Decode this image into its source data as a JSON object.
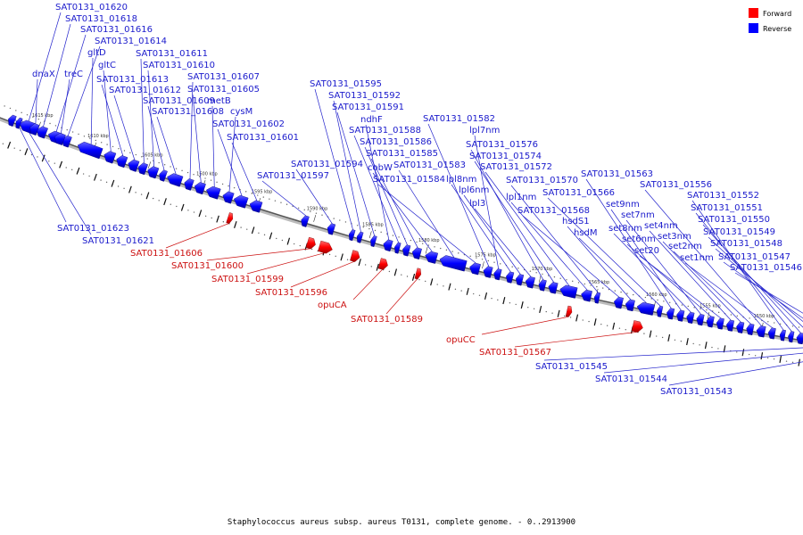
{
  "caption": "Staphylococcus aureus subsp. aureus T0131, complete genome. - 0..2913900",
  "legend": {
    "forward": {
      "label": "Forward",
      "color": "#ff0000"
    },
    "reverse": {
      "label": "Reverse",
      "color": "#0000ff"
    }
  },
  "kbp_ticks": [
    {
      "label": "1615 kbp",
      "t": 0.048
    },
    {
      "label": "1610 kbp",
      "t": 0.12
    },
    {
      "label": "1605 kbp",
      "t": 0.19
    },
    {
      "label": "1600 kbp",
      "t": 0.26
    },
    {
      "label": "1595 kbp",
      "t": 0.33
    },
    {
      "label": "1590 kbp",
      "t": 0.4
    },
    {
      "label": "1585 kbp",
      "t": 0.47
    },
    {
      "label": "1580 kbp",
      "t": 0.54
    },
    {
      "label": "1575 kbp",
      "t": 0.61
    },
    {
      "label": "1570 kbp",
      "t": 0.68
    },
    {
      "label": "1565 kbp",
      "t": 0.75
    },
    {
      "label": "1560 kbp",
      "t": 0.82
    },
    {
      "label": "1555 kbp",
      "t": 0.885
    },
    {
      "label": "1550 kbp",
      "t": 0.95
    },
    {
      "label": "1545 kbp",
      "t": 1.02
    }
  ],
  "genes_reverse": [
    {
      "label": "SAT0131_01620",
      "t": 0.025,
      "len": 0.018
    },
    {
      "label": "SAT0131_01618",
      "t": 0.047,
      "len": 0.012
    },
    {
      "label": "SAT0131_01616",
      "t": 0.062,
      "len": 0.016
    },
    {
      "label": "SAT0131_01614",
      "t": 0.08,
      "len": 0.01
    },
    {
      "label": "dnaX",
      "t": 0.038,
      "len": 0.01
    },
    {
      "label": "treC",
      "t": 0.07,
      "len": 0.012
    },
    {
      "label": "gltD",
      "t": 0.1,
      "len": 0.03
    },
    {
      "label": "gltC",
      "t": 0.134,
      "len": 0.013
    },
    {
      "label": "SAT0131_01613",
      "t": 0.15,
      "len": 0.012
    },
    {
      "label": "SAT0131_01612",
      "t": 0.165,
      "len": 0.012
    },
    {
      "label": "SAT0131_01611",
      "t": 0.178,
      "len": 0.01
    },
    {
      "label": "SAT0131_01610",
      "t": 0.19,
      "len": 0.012
    },
    {
      "label": "SAT0131_01609",
      "t": 0.205,
      "len": 0.008
    },
    {
      "label": "SAT0131_01608",
      "t": 0.215,
      "len": 0.018
    },
    {
      "label": "SAT0131_01607",
      "t": 0.237,
      "len": 0.01
    },
    {
      "label": "SAT0131_01605",
      "t": 0.25,
      "len": 0.012
    },
    {
      "label": "metB",
      "t": 0.265,
      "len": 0.016
    },
    {
      "label": "cysM",
      "t": 0.286,
      "len": 0.012
    },
    {
      "label": "SAT0131_01602",
      "t": 0.3,
      "len": 0.016
    },
    {
      "label": "SAT0131_01601",
      "t": 0.32,
      "len": 0.014
    },
    {
      "label": "SAT0131_01597",
      "t": 0.385,
      "len": 0.008
    },
    {
      "label": "SAT0131_01594",
      "t": 0.418,
      "len": 0.008
    },
    {
      "label": "SAT0131_01595",
      "t": 0.445,
      "len": 0.006
    },
    {
      "label": "SAT0131_01592",
      "t": 0.455,
      "len": 0.006
    },
    {
      "label": "SAT0131_01591",
      "t": 0.472,
      "len": 0.006
    },
    {
      "label": "ndhF",
      "t": 0.488,
      "len": 0.01
    },
    {
      "label": "SAT0131_01588",
      "t": 0.502,
      "len": 0.006
    },
    {
      "label": "SAT0131_01586",
      "t": 0.512,
      "len": 0.008
    },
    {
      "label": "SAT0131_01585",
      "t": 0.524,
      "len": 0.01
    },
    {
      "label": "cobW",
      "t": 0.54,
      "len": 0.014
    },
    {
      "label": "SAT0131_01583",
      "t": 0.558,
      "len": 0.032
    },
    {
      "label": "SAT0131_01584",
      "t": 0.595,
      "len": 0.012
    },
    {
      "label": "SAT0131_01582",
      "t": 0.612,
      "len": 0.01
    },
    {
      "label": "lpl7nm",
      "t": 0.625,
      "len": 0.008
    },
    {
      "label": "lpl8nm",
      "t": 0.64,
      "len": 0.008
    },
    {
      "label": "lpl6nm",
      "t": 0.652,
      "len": 0.008
    },
    {
      "label": "lpl3",
      "t": 0.664,
      "len": 0.01
    },
    {
      "label": "SAT0131_01576",
      "t": 0.68,
      "len": 0.008
    },
    {
      "label": "SAT0131_01574",
      "t": 0.692,
      "len": 0.01
    },
    {
      "label": "SAT0131_01572",
      "t": 0.706,
      "len": 0.02
    },
    {
      "label": "lpl1nm",
      "t": 0.732,
      "len": 0.012
    },
    {
      "label": "SAT0131_01570",
      "t": 0.748,
      "len": 0.006
    },
    {
      "label": "SAT0131_01568",
      "t": 0.772,
      "len": 0.01
    },
    {
      "label": "hsdS1",
      "t": 0.786,
      "len": 0.01
    },
    {
      "label": "hsdM",
      "t": 0.8,
      "len": 0.02
    },
    {
      "label": "SAT0131_01566",
      "t": 0.824,
      "len": 0.006
    },
    {
      "label": "SAT0131_01563",
      "t": 0.836,
      "len": 0.008
    },
    {
      "label": "set9nm",
      "t": 0.848,
      "len": 0.008
    },
    {
      "label": "set8nm",
      "t": 0.86,
      "len": 0.008
    },
    {
      "label": "set7nm",
      "t": 0.872,
      "len": 0.008
    },
    {
      "label": "set6nm",
      "t": 0.884,
      "len": 0.008
    },
    {
      "label": "set20",
      "t": 0.896,
      "len": 0.008
    },
    {
      "label": "set4nm",
      "t": 0.908,
      "len": 0.008
    },
    {
      "label": "set3nm",
      "t": 0.92,
      "len": 0.008
    },
    {
      "label": "set2nm",
      "t": 0.932,
      "len": 0.008
    },
    {
      "label": "SAT0131_01556",
      "t": 0.944,
      "len": 0.01
    },
    {
      "label": "set1nm",
      "t": 0.958,
      "len": 0.008
    },
    {
      "label": "SAT0131_01552",
      "t": 0.972,
      "len": 0.006
    },
    {
      "label": "SAT0131_01551",
      "t": 0.982,
      "len": 0.006
    },
    {
      "label": "SAT0131_01550",
      "t": 0.992,
      "len": 0.008
    },
    {
      "label": "SAT0131_01549",
      "t": 1.004,
      "len": 0.008
    },
    {
      "label": "SAT0131_01548",
      "t": 1.016,
      "len": 0.008
    },
    {
      "label": "SAT0131_01547",
      "t": 1.028,
      "len": 0.008
    },
    {
      "label": "SAT0131_01546",
      "t": 1.04,
      "len": 0.03
    },
    {
      "label": "SAT0131_01623",
      "t": 0.01,
      "len": 0.008
    },
    {
      "label": "SAT0131_01621",
      "t": 0.02,
      "len": 0.006
    },
    {
      "label": "SAT0131_01545",
      "t": 1.075,
      "len": 0.006
    },
    {
      "label": "SAT0131_01544",
      "t": 1.085,
      "len": 0.006
    },
    {
      "label": "SAT0131_01543",
      "t": 1.095,
      "len": 0.006
    }
  ],
  "genes_forward": [
    {
      "label": "SAT0131_01606",
      "t": 0.3,
      "len": 0.006
    },
    {
      "label": "SAT0131_01600",
      "t": 0.4,
      "len": 0.01
    },
    {
      "label": "SAT0131_01599",
      "t": 0.415,
      "len": 0.016
    },
    {
      "label": "SAT0131_01596",
      "t": 0.455,
      "len": 0.01
    },
    {
      "label": "opuCA",
      "t": 0.49,
      "len": 0.01
    },
    {
      "label": "SAT0131_01589",
      "t": 0.535,
      "len": 0.006
    },
    {
      "label": "opuCC",
      "t": 0.72,
      "len": 0.006
    },
    {
      "label": "SAT0131_01567",
      "t": 0.8,
      "len": 0.012
    }
  ],
  "labels_reverse": [
    {
      "text": "SAT0131_01620",
      "gene": 0
    },
    {
      "text": "SAT0131_01618",
      "gene": 1
    },
    {
      "text": "SAT0131_01616",
      "gene": 2
    },
    {
      "text": "SAT0131_01614",
      "gene": 3
    },
    {
      "text": "dnaX",
      "gene": 4
    },
    {
      "text": "treC",
      "gene": 5
    },
    {
      "text": "gltD",
      "gene": 6
    },
    {
      "text": "gltC",
      "gene": 7
    },
    {
      "text": "SAT0131_01613",
      "gene": 8
    },
    {
      "text": "SAT0131_01612",
      "gene": 9
    },
    {
      "text": "SAT0131_01611",
      "gene": 10
    },
    {
      "text": "SAT0131_01610",
      "gene": 11
    },
    {
      "text": "SAT0131_01609",
      "gene": 12
    },
    {
      "text": "SAT0131_01608",
      "gene": 13
    },
    {
      "text": "SAT0131_01607",
      "gene": 14
    },
    {
      "text": "SAT0131_01605",
      "gene": 15
    },
    {
      "text": "metB",
      "gene": 16
    },
    {
      "text": "cysM",
      "gene": 17
    },
    {
      "text": "SAT0131_01602",
      "gene": 18
    },
    {
      "text": "SAT0131_01601",
      "gene": 19
    },
    {
      "text": "SAT0131_01597",
      "gene": 20
    },
    {
      "text": "SAT0131_01594",
      "gene": 21
    },
    {
      "text": "SAT0131_01595",
      "gene": 22
    },
    {
      "text": "SAT0131_01592",
      "gene": 23
    },
    {
      "text": "SAT0131_01591",
      "gene": 24
    },
    {
      "text": "ndhF",
      "gene": 25
    },
    {
      "text": "SAT0131_01588",
      "gene": 26
    },
    {
      "text": "SAT0131_01586",
      "gene": 27
    },
    {
      "text": "SAT0131_01585",
      "gene": 28
    },
    {
      "text": "cobW",
      "gene": 29
    },
    {
      "text": "SAT0131_01583",
      "gene": 30
    },
    {
      "text": "SAT0131_01584",
      "gene": 31
    },
    {
      "text": "SAT0131_01582",
      "gene": 32
    },
    {
      "text": "lpl7nm",
      "gene": 33
    },
    {
      "text": "lpl8nm",
      "gene": 34
    },
    {
      "text": "lpl6nm",
      "gene": 35
    },
    {
      "text": "lpl3",
      "gene": 36
    },
    {
      "text": "SAT0131_01576",
      "gene": 37
    },
    {
      "text": "SAT0131_01574",
      "gene": 38
    },
    {
      "text": "SAT0131_01572",
      "gene": 39
    },
    {
      "text": "lpl1nm",
      "gene": 40
    },
    {
      "text": "SAT0131_01570",
      "gene": 41
    },
    {
      "text": "SAT0131_01568",
      "gene": 42
    },
    {
      "text": "hsdS1",
      "gene": 43
    },
    {
      "text": "hsdM",
      "gene": 44
    },
    {
      "text": "SAT0131_01566",
      "gene": 45
    },
    {
      "text": "SAT0131_01563",
      "gene": 46
    },
    {
      "text": "set9nm",
      "gene": 47
    },
    {
      "text": "set8nm",
      "gene": 48
    },
    {
      "text": "set7nm",
      "gene": 49
    },
    {
      "text": "set6nm",
      "gene": 50
    },
    {
      "text": "set20",
      "gene": 51
    },
    {
      "text": "set4nm",
      "gene": 52
    },
    {
      "text": "set3nm",
      "gene": 53
    },
    {
      "text": "set2nm",
      "gene": 54
    },
    {
      "text": "SAT0131_01556",
      "gene": 55
    },
    {
      "text": "set1nm",
      "gene": 56
    },
    {
      "text": "SAT0131_01552",
      "gene": 57
    },
    {
      "text": "SAT0131_01551",
      "gene": 58
    },
    {
      "text": "SAT0131_01550",
      "gene": 59
    },
    {
      "text": "SAT0131_01549",
      "gene": 60
    },
    {
      "text": "SAT0131_01548",
      "gene": 61
    },
    {
      "text": "SAT0131_01547",
      "gene": 62
    },
    {
      "text": "SAT0131_01546",
      "gene": 63
    },
    {
      "text": "SAT0131_01623",
      "gene": 64
    },
    {
      "text": "SAT0131_01621",
      "gene": 65
    },
    {
      "text": "SAT0131_01545",
      "gene": 66
    },
    {
      "text": "SAT0131_01544",
      "gene": 67
    },
    {
      "text": "SAT0131_01543",
      "gene": 68
    }
  ]
}
